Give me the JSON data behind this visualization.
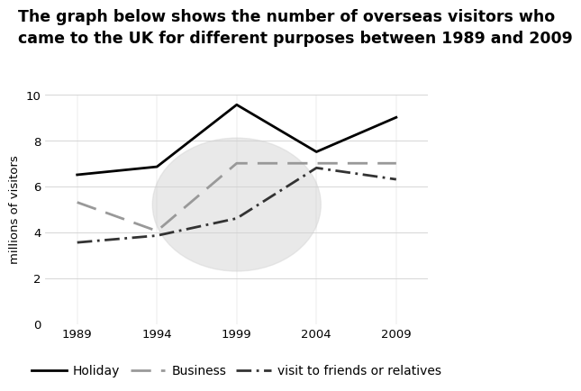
{
  "title_line1": "The graph below shows the number of overseas visitors who",
  "title_line2": "came to the UK for different purposes between 1989 and 2009",
  "ylabel": "millions of visitors",
  "years": [
    1989,
    1994,
    1999,
    2004,
    2009
  ],
  "holiday": [
    6.5,
    6.85,
    9.55,
    7.5,
    9.0
  ],
  "business": [
    5.3,
    4.05,
    7.0,
    7.0,
    7.0
  ],
  "friends": [
    3.55,
    3.85,
    4.6,
    6.8,
    6.3
  ],
  "ylim": [
    0,
    10
  ],
  "yticks": [
    0,
    2,
    4,
    6,
    8,
    10
  ],
  "xticks": [
    1989,
    1994,
    1999,
    2004,
    2009
  ],
  "background_color": "#ffffff",
  "title_fontsize": 12.5,
  "axis_fontsize": 9.5,
  "legend_fontsize": 10
}
